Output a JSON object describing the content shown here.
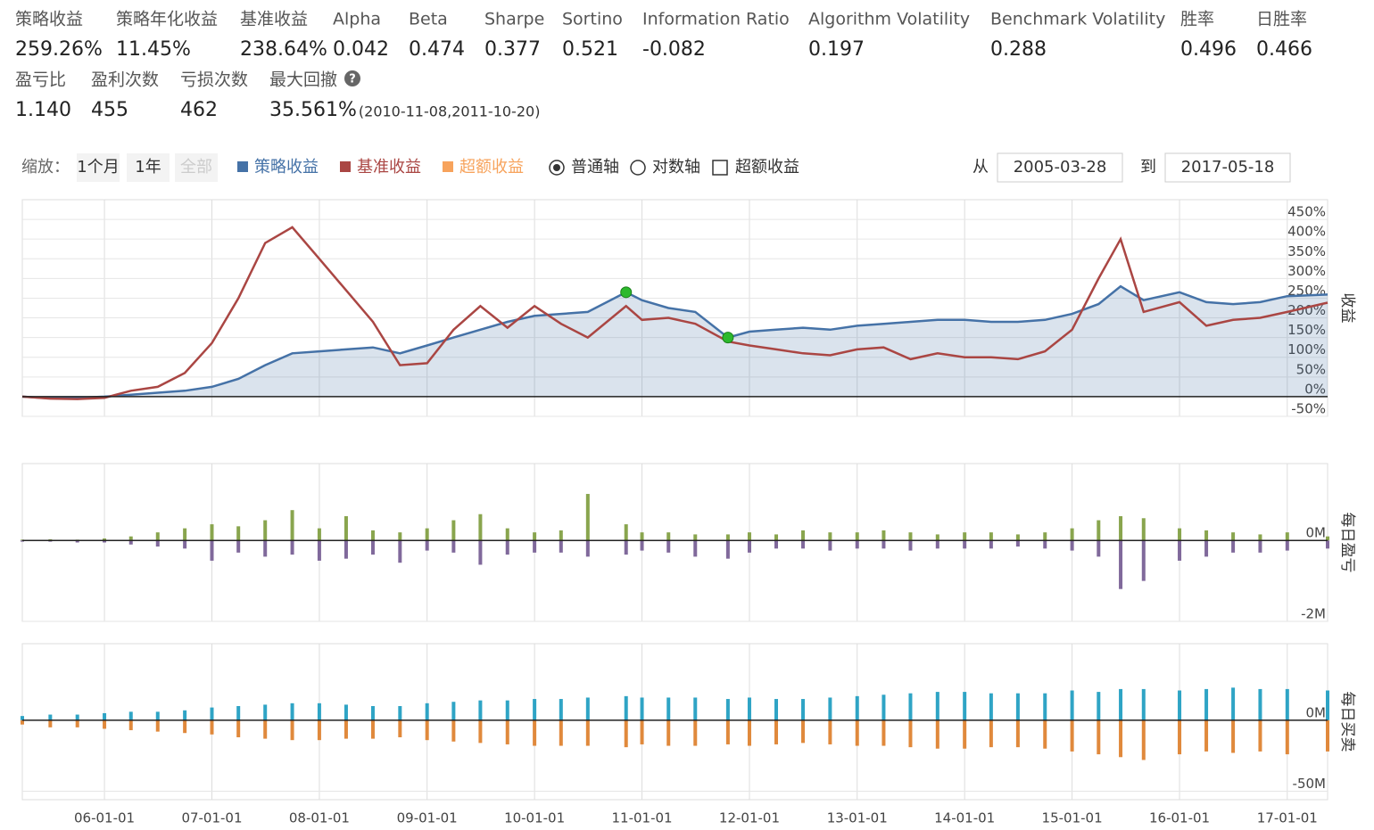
{
  "metrics": [
    {
      "label": "策略收益",
      "value": "259.26%"
    },
    {
      "label": "策略年化收益",
      "value": "11.45%"
    },
    {
      "label": "基准收益",
      "value": "238.64%"
    },
    {
      "label": "Alpha",
      "value": "0.042"
    },
    {
      "label": "Beta",
      "value": "0.474"
    },
    {
      "label": "Sharpe",
      "value": "0.377"
    },
    {
      "label": "Sortino",
      "value": "0.521"
    },
    {
      "label": "Information Ratio",
      "value": "-0.082"
    },
    {
      "label": "Algorithm Volatility",
      "value": "0.197"
    },
    {
      "label": "Benchmark Volatility",
      "value": "0.288"
    },
    {
      "label": "胜率",
      "value": "0.496"
    },
    {
      "label": "日胜率",
      "value": "0.466"
    }
  ],
  "metrics2": [
    {
      "label": "盈亏比",
      "value": "1.140"
    },
    {
      "label": "盈利次数",
      "value": "455"
    },
    {
      "label": "亏损次数",
      "value": "462"
    },
    {
      "label": "最大回撤",
      "value": "35.561%",
      "note": "(2010-11-08,2011-10-20)"
    }
  ],
  "controls": {
    "zoom": "缩放：",
    "buttons": [
      "1个月",
      "1年",
      "全部"
    ],
    "excess": {
      "name": "超额收益",
      "color": "#f7a35c"
    },
    "axis_normal": "普通轴",
    "axis_log": "对数轴",
    "excess_check": "超额收益",
    "from": "从",
    "from_date": "2005-03-28",
    "to": "到",
    "to_date": "2017-05-18"
  },
  "chart_data": [
    {
      "type": "line",
      "y_title": "收益",
      "x": [
        "05-03-28",
        "05-07-01",
        "05-10-01",
        "06-01-01",
        "06-04-01",
        "06-07-01",
        "06-10-01",
        "07-01-01",
        "07-04-01",
        "07-07-01",
        "07-10-01",
        "08-01-01",
        "08-04-01",
        "08-07-01",
        "08-10-01",
        "09-01-01",
        "09-04-01",
        "09-07-01",
        "09-10-01",
        "10-01-01",
        "10-04-01",
        "10-07-01",
        "10-11-08",
        "11-01-01",
        "11-04-01",
        "11-07-01",
        "11-10-20",
        "12-01-01",
        "12-04-01",
        "12-07-01",
        "12-10-01",
        "13-01-01",
        "13-04-01",
        "13-07-01",
        "13-10-01",
        "14-01-01",
        "14-04-01",
        "14-07-01",
        "14-10-01",
        "15-01-01",
        "15-04-01",
        "15-06-15",
        "15-09-01",
        "16-01-01",
        "16-04-01",
        "16-07-01",
        "16-10-01",
        "17-01-01",
        "17-05-18"
      ],
      "xlim": [
        "05-03-28",
        "17-05-18"
      ],
      "series": [
        {
          "name": "策略收益",
          "color": "#4572a7",
          "values": [
            0,
            -4,
            -3,
            0,
            5,
            10,
            15,
            25,
            45,
            80,
            110,
            115,
            120,
            125,
            110,
            130,
            150,
            170,
            190,
            205,
            210,
            215,
            265,
            245,
            225,
            215,
            150,
            165,
            170,
            175,
            170,
            180,
            185,
            190,
            195,
            195,
            190,
            190,
            195,
            210,
            235,
            280,
            245,
            265,
            240,
            235,
            240,
            255,
            259.26
          ]
        },
        {
          "name": "基准收益",
          "color": "#aa4643",
          "values": [
            0,
            -5,
            -6,
            -3,
            15,
            25,
            60,
            136,
            250,
            390,
            430,
            350,
            270,
            190,
            80,
            85,
            170,
            230,
            175,
            230,
            185,
            150,
            230,
            195,
            200,
            185,
            140,
            130,
            120,
            110,
            105,
            120,
            125,
            95,
            110,
            100,
            100,
            95,
            115,
            170,
            300,
            400,
            215,
            240,
            180,
            195,
            200,
            215,
            238.64
          ]
        }
      ],
      "ylim": [
        -50,
        500
      ],
      "yticks": [
        {
          "value": -50,
          "label": "-50%"
        },
        {
          "value": 0,
          "label": "0%"
        },
        {
          "value": 50,
          "label": "50%"
        },
        {
          "value": 100,
          "label": "100%"
        },
        {
          "value": 150,
          "label": "150%"
        },
        {
          "value": 200,
          "label": "200%"
        },
        {
          "value": 250,
          "label": "250%"
        },
        {
          "value": 300,
          "label": "300%"
        },
        {
          "value": 350,
          "label": "350%"
        },
        {
          "value": 400,
          "label": "400%"
        },
        {
          "value": 450,
          "label": "450%"
        }
      ]
    },
    {
      "type": "bar",
      "y_title": "每日盈亏",
      "x": [
        "05-03-28",
        "05-07-01",
        "05-10-01",
        "06-01-01",
        "06-04-01",
        "06-07-01",
        "06-10-01",
        "07-01-01",
        "07-04-01",
        "07-07-01",
        "07-10-01",
        "08-01-01",
        "08-04-01",
        "08-07-01",
        "08-10-01",
        "09-01-01",
        "09-04-01",
        "09-07-01",
        "09-10-01",
        "10-01-01",
        "10-04-01",
        "10-07-01",
        "10-11-08",
        "11-01-01",
        "11-04-01",
        "11-07-01",
        "11-10-20",
        "12-01-01",
        "12-04-01",
        "12-07-01",
        "12-10-01",
        "13-01-01",
        "13-04-01",
        "13-07-01",
        "13-10-01",
        "14-01-01",
        "14-04-01",
        "14-07-01",
        "14-10-01",
        "15-01-01",
        "15-04-01",
        "15-06-15",
        "15-09-01",
        "16-01-01",
        "16-04-01",
        "16-07-01",
        "16-10-01",
        "17-01-01",
        "17-05-18"
      ],
      "xlim": [
        "05-03-28",
        "17-05-18"
      ],
      "series": [
        {
          "color": "#89a54e",
          "values": [
            0.02,
            0.03,
            0.02,
            0.05,
            0.1,
            0.2,
            0.3,
            0.4,
            0.35,
            0.5,
            0.75,
            0.3,
            0.6,
            0.25,
            0.2,
            0.3,
            0.5,
            0.65,
            0.3,
            0.2,
            0.25,
            1.15,
            0.4,
            0.2,
            0.2,
            0.15,
            0.15,
            0.2,
            0.15,
            0.25,
            0.2,
            0.2,
            0.25,
            0.2,
            0.15,
            0.2,
            0.2,
            0.15,
            0.2,
            0.3,
            0.5,
            0.6,
            0.55,
            0.3,
            0.25,
            0.2,
            0.15,
            0.2,
            0.1
          ]
        },
        {
          "color": "#80699b",
          "values": [
            -0.03,
            -0.03,
            -0.05,
            -0.05,
            -0.1,
            -0.15,
            -0.2,
            -0.5,
            -0.3,
            -0.4,
            -0.35,
            -0.5,
            -0.45,
            -0.35,
            -0.55,
            -0.25,
            -0.3,
            -0.6,
            -0.35,
            -0.3,
            -0.3,
            -0.4,
            -0.35,
            -0.25,
            -0.3,
            -0.4,
            -0.45,
            -0.3,
            -0.2,
            -0.2,
            -0.25,
            -0.2,
            -0.2,
            -0.25,
            -0.2,
            -0.2,
            -0.2,
            -0.15,
            -0.2,
            -0.25,
            -0.4,
            -1.2,
            -1.0,
            -0.5,
            -0.4,
            -0.3,
            -0.3,
            -0.25,
            -0.2
          ]
        }
      ],
      "ylim": [
        -2,
        1.9
      ],
      "yticks": [
        {
          "value": -2,
          "label": "-2M"
        },
        {
          "value": 0,
          "label": "0M"
        }
      ]
    },
    {
      "type": "bar",
      "y_title": "每日买卖",
      "x": [
        "05-03-28",
        "05-07-01",
        "05-10-01",
        "06-01-01",
        "06-04-01",
        "06-07-01",
        "06-10-01",
        "07-01-01",
        "07-04-01",
        "07-07-01",
        "07-10-01",
        "08-01-01",
        "08-04-01",
        "08-07-01",
        "08-10-01",
        "09-01-01",
        "09-04-01",
        "09-07-01",
        "09-10-01",
        "10-01-01",
        "10-04-01",
        "10-07-01",
        "10-11-08",
        "11-01-01",
        "11-04-01",
        "11-07-01",
        "11-10-20",
        "12-01-01",
        "12-04-01",
        "12-07-01",
        "12-10-01",
        "13-01-01",
        "13-04-01",
        "13-07-01",
        "13-10-01",
        "14-01-01",
        "14-04-01",
        "14-07-01",
        "14-10-01",
        "15-01-01",
        "15-04-01",
        "15-06-15",
        "15-09-01",
        "16-01-01",
        "16-04-01",
        "16-07-01",
        "16-10-01",
        "17-01-01",
        "17-05-18"
      ],
      "xlim": [
        "05-03-28",
        "17-05-18"
      ],
      "series": [
        {
          "color": "#2fa4c5",
          "values": [
            3,
            4,
            4,
            5,
            6,
            6,
            7,
            9,
            10,
            11,
            12,
            12,
            11,
            10,
            10,
            12,
            13,
            14,
            14,
            15,
            15,
            16,
            17,
            16,
            16,
            16,
            15,
            16,
            15,
            15,
            16,
            17,
            18,
            19,
            20,
            20,
            19,
            19,
            19,
            21,
            20,
            22,
            22,
            21,
            22,
            23,
            22,
            22,
            21
          ]
        },
        {
          "color": "#e0893c",
          "values": [
            -3,
            -5,
            -5,
            -6,
            -7,
            -8,
            -9,
            -10,
            -12,
            -13,
            -14,
            -14,
            -13,
            -13,
            -12,
            -14,
            -15,
            -16,
            -17,
            -18,
            -18,
            -18,
            -19,
            -17,
            -18,
            -18,
            -17,
            -18,
            -17,
            -16,
            -17,
            -18,
            -18,
            -19,
            -20,
            -20,
            -19,
            -19,
            -20,
            -22,
            -24,
            -26,
            -28,
            -24,
            -22,
            -23,
            -22,
            -24,
            -22
          ]
        }
      ],
      "ylim": [
        -56,
        54
      ],
      "yticks": [
        {
          "value": -50,
          "label": "-50M"
        },
        {
          "value": 0,
          "label": "0M"
        }
      ],
      "xticks": [
        "06-01-01",
        "07-01-01",
        "08-01-01",
        "09-01-01",
        "10-01-01",
        "11-01-01",
        "12-01-01",
        "13-01-01",
        "14-01-01",
        "15-01-01",
        "16-01-01",
        "17-01-01"
      ]
    }
  ]
}
